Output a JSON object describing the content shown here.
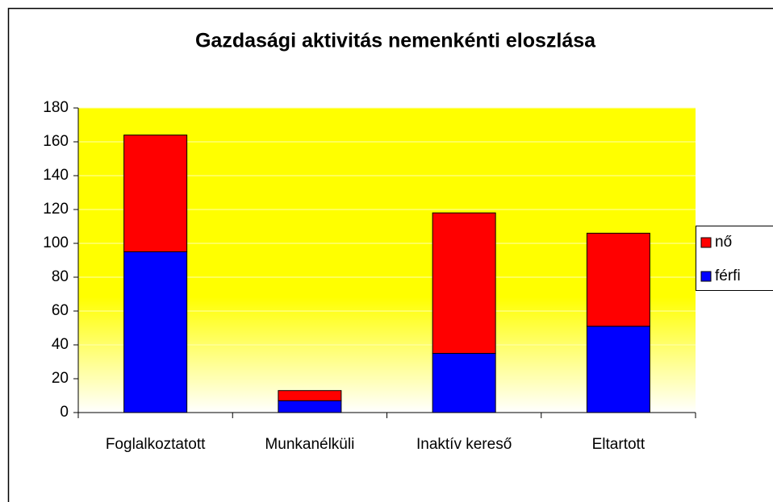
{
  "chart_data": {
    "type": "stacked_bar",
    "title": "Gazdasági aktivitás nemenkénti eloszlása",
    "categories": [
      "Foglalkoztatott",
      "Munkanélküli",
      "Inaktív kereső",
      "Eltartott"
    ],
    "series": [
      {
        "name": "férfi",
        "color": "#0000ff",
        "values": [
          95,
          7,
          35,
          51
        ]
      },
      {
        "name": "nő",
        "color": "#ff0000",
        "values": [
          69,
          6,
          83,
          55
        ]
      }
    ],
    "ylim": [
      0,
      180
    ],
    "yticks": [
      0,
      20,
      40,
      60,
      80,
      100,
      120,
      140,
      160,
      180
    ],
    "grid": true,
    "legend": "right"
  }
}
